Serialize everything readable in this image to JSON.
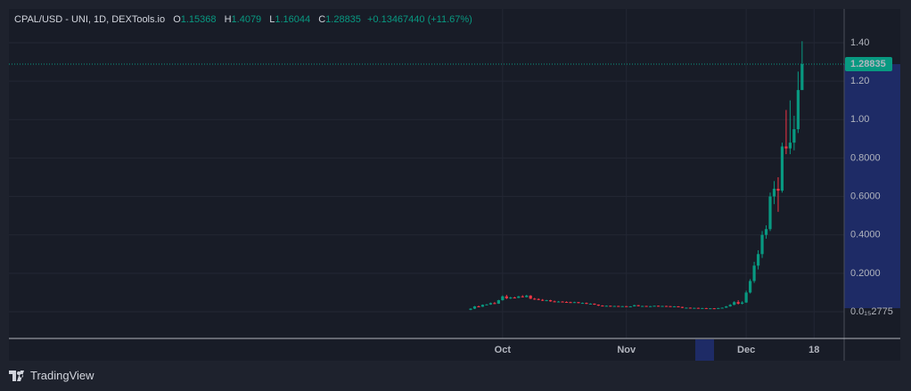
{
  "chart_data": {
    "type": "candlestick",
    "title": "CPAL/USD - UNI, 1D, DEXTools.io",
    "ohlc_labels": [
      "O",
      "H",
      "L",
      "C"
    ],
    "change": "+0.13467440 (+11.67%)",
    "categories": [
      null,
      null,
      null,
      null,
      null,
      null,
      null,
      null,
      "Oct",
      null,
      null,
      null,
      null,
      null,
      null,
      null,
      null,
      null,
      null,
      null,
      null,
      null,
      null,
      null,
      null,
      null,
      null,
      null,
      null,
      null,
      null,
      null,
      null,
      null,
      null,
      null,
      null,
      null,
      null,
      "Nov",
      null,
      null,
      null,
      null,
      null,
      null,
      null,
      null,
      null,
      null,
      null,
      null,
      null,
      null,
      null,
      null,
      null,
      null,
      null,
      null,
      null,
      null,
      null,
      null,
      null,
      null,
      null,
      null,
      null,
      "Dec",
      null,
      null,
      null,
      null,
      null,
      null,
      null,
      null,
      null,
      null,
      null,
      null,
      null,
      null,
      null,
      null,
      "18",
      null,
      null,
      null,
      null,
      null,
      null
    ],
    "open": [
      0.01,
      0.016,
      0.028,
      0.026,
      0.036,
      0.038,
      0.045,
      0.042,
      0.06,
      0.08,
      0.07,
      0.074,
      0.072,
      0.08,
      0.076,
      0.084,
      0.068,
      0.066,
      0.062,
      0.058,
      0.06,
      0.054,
      0.052,
      0.053,
      0.051,
      0.05,
      0.048,
      0.05,
      0.045,
      0.046,
      0.041,
      0.042,
      0.037,
      0.032,
      0.03,
      0.031,
      0.029,
      0.03,
      0.028,
      0.029,
      0.027,
      0.028,
      0.034,
      0.029,
      0.03,
      0.028,
      0.029,
      0.031,
      0.029,
      0.03,
      0.029,
      0.027,
      0.028,
      0.025,
      0.02,
      0.021,
      0.019,
      0.02,
      0.018,
      0.019,
      0.017,
      0.018,
      0.016,
      0.019,
      0.021,
      0.028,
      0.036,
      0.05,
      0.042,
      0.048,
      0.1,
      0.16,
      0.24,
      0.3,
      0.4,
      0.43,
      0.6,
      0.64,
      0.63,
      0.86,
      0.85,
      0.88,
      0.95,
      1.15368,
      null,
      null,
      null,
      null,
      null,
      null,
      null,
      null,
      null
    ],
    "high": [
      0.018,
      0.03,
      0.032,
      0.038,
      0.04,
      0.048,
      0.05,
      0.062,
      0.085,
      0.088,
      0.078,
      0.078,
      0.082,
      0.086,
      0.088,
      0.086,
      0.072,
      0.07,
      0.066,
      0.062,
      0.062,
      0.058,
      0.056,
      0.055,
      0.054,
      0.052,
      0.052,
      0.051,
      0.048,
      0.048,
      0.044,
      0.043,
      0.038,
      0.034,
      0.033,
      0.032,
      0.031,
      0.031,
      0.03,
      0.03,
      0.029,
      0.036,
      0.035,
      0.031,
      0.031,
      0.03,
      0.032,
      0.032,
      0.031,
      0.031,
      0.03,
      0.029,
      0.029,
      0.026,
      0.022,
      0.022,
      0.021,
      0.021,
      0.02,
      0.02,
      0.019,
      0.019,
      0.02,
      0.022,
      0.03,
      0.04,
      0.055,
      0.06,
      0.055,
      0.11,
      0.17,
      0.26,
      0.32,
      0.42,
      0.45,
      0.62,
      0.68,
      0.7,
      0.88,
      1.05,
      1.1,
      1.02,
      1.25,
      1.4079,
      null,
      null,
      null,
      null,
      null,
      null,
      null,
      null,
      null
    ],
    "low": [
      0.008,
      0.014,
      0.024,
      0.025,
      0.033,
      0.036,
      0.04,
      0.041,
      0.058,
      0.066,
      0.066,
      0.07,
      0.071,
      0.074,
      0.075,
      0.066,
      0.062,
      0.06,
      0.056,
      0.055,
      0.052,
      0.05,
      0.049,
      0.05,
      0.048,
      0.046,
      0.046,
      0.044,
      0.043,
      0.04,
      0.038,
      0.036,
      0.03,
      0.028,
      0.028,
      0.027,
      0.026,
      0.027,
      0.026,
      0.026,
      0.025,
      0.027,
      0.028,
      0.027,
      0.027,
      0.026,
      0.028,
      0.028,
      0.027,
      0.028,
      0.026,
      0.025,
      0.024,
      0.019,
      0.018,
      0.018,
      0.017,
      0.017,
      0.016,
      0.016,
      0.015,
      0.015,
      0.015,
      0.017,
      0.02,
      0.026,
      0.034,
      0.038,
      0.038,
      0.046,
      0.095,
      0.15,
      0.22,
      0.28,
      0.38,
      0.42,
      0.56,
      0.52,
      0.62,
      0.82,
      0.82,
      0.84,
      0.93,
      1.16044,
      null,
      null,
      null,
      null,
      null,
      null,
      null,
      null,
      null
    ],
    "close": [
      0.016,
      0.028,
      0.026,
      0.036,
      0.038,
      0.045,
      0.042,
      0.06,
      0.08,
      0.07,
      0.074,
      0.072,
      0.08,
      0.076,
      0.084,
      0.068,
      0.066,
      0.062,
      0.058,
      0.06,
      0.054,
      0.052,
      0.053,
      0.051,
      0.05,
      0.048,
      0.05,
      0.045,
      0.046,
      0.041,
      0.042,
      0.037,
      0.032,
      0.03,
      0.031,
      0.029,
      0.03,
      0.028,
      0.029,
      0.027,
      0.028,
      0.034,
      0.029,
      0.03,
      0.028,
      0.029,
      0.031,
      0.029,
      0.03,
      0.029,
      0.027,
      0.028,
      0.025,
      0.02,
      0.021,
      0.019,
      0.02,
      0.018,
      0.019,
      0.017,
      0.018,
      0.016,
      0.019,
      0.021,
      0.028,
      0.036,
      0.05,
      0.042,
      0.048,
      0.1,
      0.16,
      0.24,
      0.3,
      0.4,
      0.43,
      0.6,
      0.64,
      0.63,
      0.86,
      0.85,
      0.88,
      0.95,
      1.15368,
      1.28835,
      null,
      null,
      null,
      null,
      null,
      null,
      null,
      null,
      null
    ],
    "up_color": "#089981",
    "down_color": "#f23645",
    "ylim": [
      -0.139,
      1.576
    ],
    "yticks": [
      {
        "value": 2.775e-16,
        "label": "0.0₁₅2775"
      },
      {
        "value": 0.2,
        "label": "0.2000"
      },
      {
        "value": 0.4,
        "label": "0.4000"
      },
      {
        "value": 0.6,
        "label": "0.6000"
      },
      {
        "value": 0.8,
        "label": "0.8000"
      },
      {
        "value": 1.0,
        "label": "1.00"
      },
      {
        "value": 1.2,
        "label": "1.20"
      },
      {
        "value": 1.4,
        "label": "1.40"
      }
    ],
    "grid": true
  },
  "branding": "TradingView"
}
